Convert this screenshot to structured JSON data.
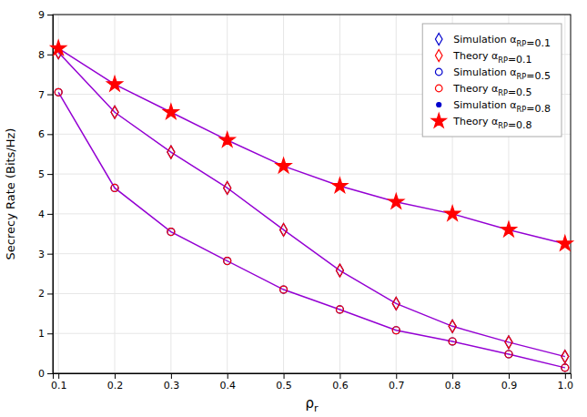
{
  "chart_data": {
    "type": "line",
    "x": [
      0.1,
      0.2,
      0.3,
      0.4,
      0.5,
      0.6,
      0.7,
      0.8,
      0.9,
      1.0
    ],
    "xlabel": "ρr",
    "ylabel": "Secrecy Rate (Bits/Hz)",
    "xlim": [
      0.09,
      1.01
    ],
    "ylim": [
      0,
      9
    ],
    "xticks": [
      0.1,
      0.2,
      0.3,
      0.4,
      0.5,
      0.6,
      0.7,
      0.8,
      0.9,
      {
        "value": 1.0,
        "label": "1.0"
      }
    ],
    "yticks": [
      0,
      1,
      2,
      3,
      4,
      5,
      6,
      7,
      8,
      9
    ],
    "grid": true,
    "legend": "upper right",
    "color": "#9400D3",
    "series": [
      {
        "name": "Simulation αRP=0.1",
        "color": "#0000CD",
        "marker": "diamond-open",
        "line_style": "solid",
        "values": [
          8.05,
          6.55,
          5.55,
          4.65,
          3.6,
          2.58,
          1.75,
          1.18,
          0.78,
          0.42
        ]
      },
      {
        "name": "Theory αRP=0.1",
        "color": "#FF0000",
        "marker": "diamond-open",
        "line_style": "none",
        "values": [
          8.05,
          6.55,
          5.55,
          4.65,
          3.6,
          2.58,
          1.75,
          1.18,
          0.78,
          0.42
        ]
      },
      {
        "name": "Simulation αRP=0.5",
        "color": "#0000CD",
        "marker": "circle-open",
        "line_style": "solid",
        "values": [
          7.05,
          4.65,
          3.55,
          2.82,
          2.1,
          1.6,
          1.08,
          0.8,
          0.48,
          0.14
        ]
      },
      {
        "name": "Theory αRP=0.5",
        "color": "#FF0000",
        "marker": "circle-open",
        "line_style": "none",
        "values": [
          7.05,
          4.65,
          3.55,
          2.82,
          2.1,
          1.6,
          1.08,
          0.8,
          0.48,
          0.14
        ]
      },
      {
        "name": "Simulation αRP=0.8",
        "color": "#0000CD",
        "marker": "dot",
        "line_style": "solid",
        "values": [
          8.15,
          7.25,
          6.55,
          5.85,
          5.2,
          4.7,
          4.3,
          4.0,
          3.6,
          3.25
        ]
      },
      {
        "name": "Theory αRP=0.8",
        "color": "#FF0000",
        "marker": "star",
        "line_style": "none",
        "values": [
          8.15,
          7.25,
          6.55,
          5.85,
          5.2,
          4.7,
          4.3,
          4.0,
          3.6,
          3.25
        ]
      }
    ]
  }
}
